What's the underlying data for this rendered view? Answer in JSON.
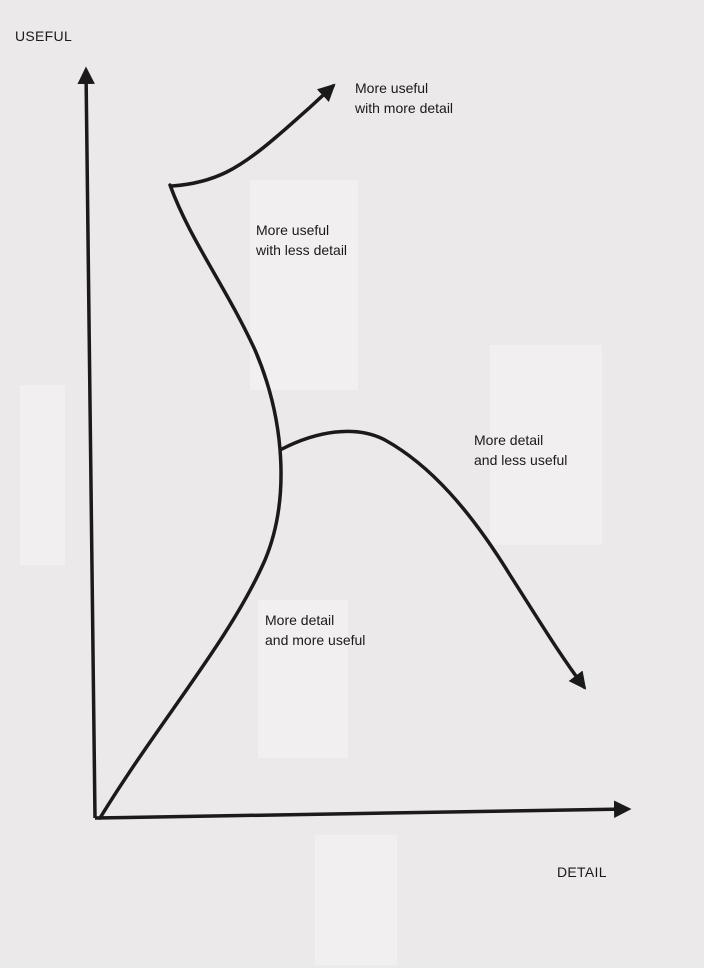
{
  "axes": {
    "y_label": "USEFUL",
    "x_label": "DETAIL"
  },
  "annotations": {
    "top_right": [
      "More useful",
      "with more detail"
    ],
    "upper_middle": [
      "More useful",
      "with less detail"
    ],
    "right_middle": [
      "More detail",
      "and less useful"
    ],
    "lower_middle": [
      "More detail",
      "and more useful"
    ]
  },
  "colors": {
    "ink": "#1a1a1a",
    "paper": "#ebe9ea"
  }
}
